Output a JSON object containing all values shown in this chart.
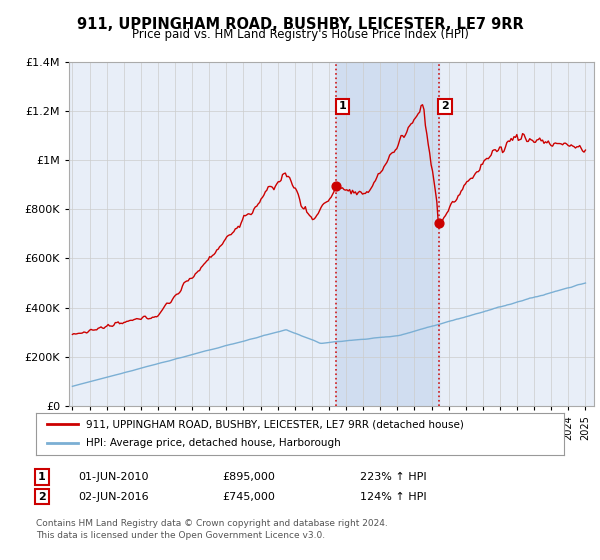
{
  "title": "911, UPPINGHAM ROAD, BUSHBY, LEICESTER, LE7 9RR",
  "subtitle": "Price paid vs. HM Land Registry's House Price Index (HPI)",
  "yticks": [
    0,
    200000,
    400000,
    600000,
    800000,
    1000000,
    1200000,
    1400000
  ],
  "legend_label_red": "911, UPPINGHAM ROAD, BUSHBY, LEICESTER, LE7 9RR (detached house)",
  "legend_label_blue": "HPI: Average price, detached house, Harborough",
  "purchase1_date": "01-JUN-2010",
  "purchase1_price": 895000,
  "purchase1_pct": "223%",
  "purchase2_date": "02-JUN-2016",
  "purchase2_price": 745000,
  "purchase2_pct": "124%",
  "footnote1": "Contains HM Land Registry data © Crown copyright and database right 2024.",
  "footnote2": "This data is licensed under the Open Government Licence v3.0.",
  "red_color": "#cc0000",
  "blue_color": "#7bafd4",
  "bg_color": "#e8eef8",
  "plot_bg": "#ffffff",
  "grid_color": "#cccccc",
  "vline_color": "#cc0000",
  "span_color": "#d0ddf0"
}
